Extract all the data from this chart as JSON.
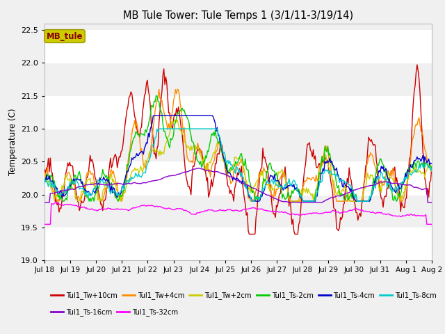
{
  "title": "MB Tule Tower: Tule Temps 1 (3/1/11-3/19/14)",
  "ylabel": "Temperature (C)",
  "ylim": [
    19.0,
    22.6
  ],
  "yticks": [
    19.0,
    19.5,
    20.0,
    20.5,
    21.0,
    21.5,
    22.0,
    22.5
  ],
  "series": [
    {
      "label": "Tul1_Tw+10cm",
      "color": "#cc0000",
      "lw": 1.0
    },
    {
      "label": "Tul1_Tw+4cm",
      "color": "#ff8c00",
      "lw": 1.0
    },
    {
      "label": "Tul1_Tw+2cm",
      "color": "#cccc00",
      "lw": 1.0
    },
    {
      "label": "Tul1_Ts-2cm",
      "color": "#00cc00",
      "lw": 1.0
    },
    {
      "label": "Tul1_Ts-4cm",
      "color": "#0000cc",
      "lw": 1.0
    },
    {
      "label": "Tul1_Ts-8cm",
      "color": "#00cccc",
      "lw": 1.0
    },
    {
      "label": "Tul1_Ts-16cm",
      "color": "#8800cc",
      "lw": 1.0
    },
    {
      "label": "Tul1_Ts-32cm",
      "color": "#ff00ff",
      "lw": 1.0
    }
  ],
  "legend_box_color": "#cccc00",
  "legend_box_text": "MB_tule",
  "legend_box_text_color": "#880000",
  "plot_bg_color": "#f0f0f0",
  "fig_bg_color": "#f0f0f0",
  "grid_color": "#ffffff",
  "x_tick_labels": [
    "Jul 18",
    "Jul 19",
    "Jul 20",
    "Jul 21",
    "Jul 22",
    "Jul 23",
    "Jul 24",
    "Jul 25",
    "Jul 26",
    "Jul 27",
    "Jul 28",
    "Jul 29",
    "Jul 30",
    "Jul 31",
    "Aug 1",
    "Aug 2"
  ],
  "n_points": 400
}
